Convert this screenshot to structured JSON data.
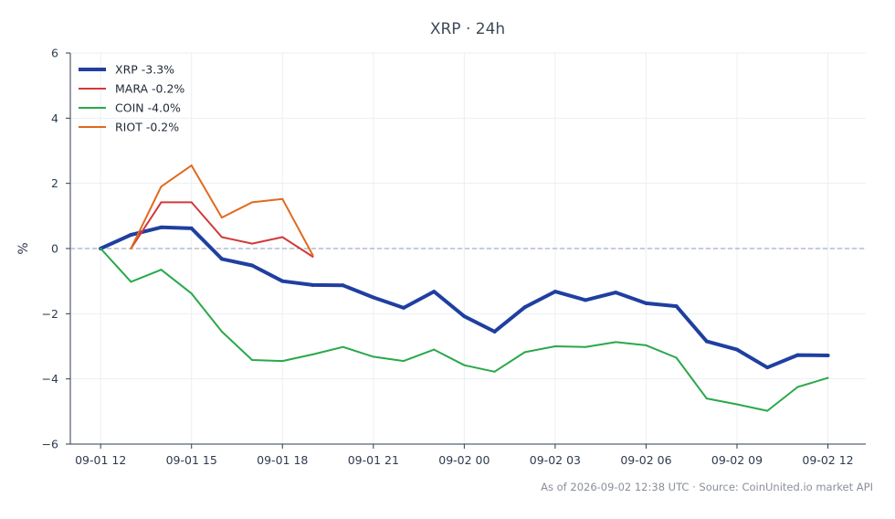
{
  "chart_data": {
    "type": "line",
    "title": "XRP · 24h",
    "xlabel": "",
    "ylabel": "%",
    "ylim": [
      -6,
      6
    ],
    "yticks": [
      6,
      4,
      2,
      0,
      -2,
      -4,
      -6
    ],
    "ytick_labels": [
      "6",
      "4",
      "2",
      "0",
      "−2",
      "−4",
      "−6"
    ],
    "xticks": [
      "2026-09-01 12:00",
      "2026-09-01 15:00",
      "2026-09-01 18:00",
      "2026-09-01 21:00",
      "2026-09-02 00:00",
      "2026-09-02 03:00",
      "2026-09-02 06:00",
      "2026-09-02 09:00",
      "2026-09-02 12:00"
    ],
    "xtick_labels": [
      "09-01 12",
      "09-01 15",
      "09-01 18",
      "09-01 21",
      "09-02 00",
      "09-02 03",
      "09-02 06",
      "09-02 09",
      "09-02 12"
    ],
    "xlim": [
      "2026-09-01 11:00",
      "2026-09-02 13:15"
    ],
    "grid": true,
    "zero_line": true,
    "legend_position": "top-left",
    "series": [
      {
        "name": "XRP -3.3%",
        "color": "#1f3fa0",
        "line_width": "thick",
        "x": [
          "2026-09-01 12:00",
          "2026-09-01 13:00",
          "2026-09-01 14:00",
          "2026-09-01 15:00",
          "2026-09-01 16:00",
          "2026-09-01 17:00",
          "2026-09-01 18:00",
          "2026-09-01 19:00",
          "2026-09-01 20:00",
          "2026-09-01 21:00",
          "2026-09-01 22:00",
          "2026-09-01 23:00",
          "2026-09-02 00:00",
          "2026-09-02 01:00",
          "2026-09-02 02:00",
          "2026-09-02 03:00",
          "2026-09-02 04:00",
          "2026-09-02 05:00",
          "2026-09-02 06:00",
          "2026-09-02 07:00",
          "2026-09-02 08:00",
          "2026-09-02 09:00",
          "2026-09-02 10:00",
          "2026-09-02 11:00",
          "2026-09-02 12:00"
        ],
        "values": [
          0.0,
          0.42,
          0.65,
          0.62,
          -0.32,
          -0.52,
          -1.0,
          -1.12,
          -1.13,
          -1.5,
          -1.82,
          -1.32,
          -2.08,
          -2.55,
          -1.8,
          -1.32,
          -1.58,
          -1.35,
          -1.68,
          -1.77,
          -2.85,
          -3.1,
          -3.65,
          -3.27,
          -3.28
        ]
      },
      {
        "name": "MARA -0.2%",
        "color": "#d23a3a",
        "line_width": "normal",
        "x": [
          "2026-09-01 13:00",
          "2026-09-01 14:00",
          "2026-09-01 15:00",
          "2026-09-01 16:00",
          "2026-09-01 17:00",
          "2026-09-01 18:00",
          "2026-09-01 19:00"
        ],
        "values": [
          0.0,
          1.42,
          1.42,
          0.35,
          0.15,
          0.35,
          -0.25
        ]
      },
      {
        "name": "COIN -4.0%",
        "color": "#2aa84a",
        "line_width": "normal",
        "x": [
          "2026-09-01 12:00",
          "2026-09-01 13:00",
          "2026-09-01 14:00",
          "2026-09-01 15:00",
          "2026-09-01 16:00",
          "2026-09-01 17:00",
          "2026-09-01 18:00",
          "2026-09-01 19:00",
          "2026-09-01 20:00",
          "2026-09-01 21:00",
          "2026-09-01 22:00",
          "2026-09-01 23:00",
          "2026-09-02 00:00",
          "2026-09-02 01:00",
          "2026-09-02 02:00",
          "2026-09-02 03:00",
          "2026-09-02 04:00",
          "2026-09-02 05:00",
          "2026-09-02 06:00",
          "2026-09-02 07:00",
          "2026-09-02 08:00",
          "2026-09-02 09:00",
          "2026-09-02 10:00",
          "2026-09-02 11:00",
          "2026-09-02 12:00"
        ],
        "values": [
          0.0,
          -1.02,
          -0.65,
          -1.38,
          -2.55,
          -3.42,
          -3.45,
          -3.25,
          -3.02,
          -3.32,
          -3.45,
          -3.1,
          -3.58,
          -3.78,
          -3.18,
          -3.0,
          -3.02,
          -2.87,
          -2.97,
          -3.35,
          -4.6,
          -4.78,
          -4.98,
          -4.25,
          -3.97
        ]
      },
      {
        "name": "RIOT -0.2%",
        "color": "#e06a1e",
        "line_width": "normal",
        "x": [
          "2026-09-01 13:00",
          "2026-09-01 14:00",
          "2026-09-01 15:00",
          "2026-09-01 16:00",
          "2026-09-01 17:00",
          "2026-09-01 18:00",
          "2026-09-01 19:00"
        ],
        "values": [
          0.0,
          1.9,
          2.55,
          0.95,
          1.42,
          1.52,
          -0.2
        ]
      }
    ]
  },
  "footer": "As of 2026-09-02 12:38 UTC · Source: CoinUnited.io market API"
}
